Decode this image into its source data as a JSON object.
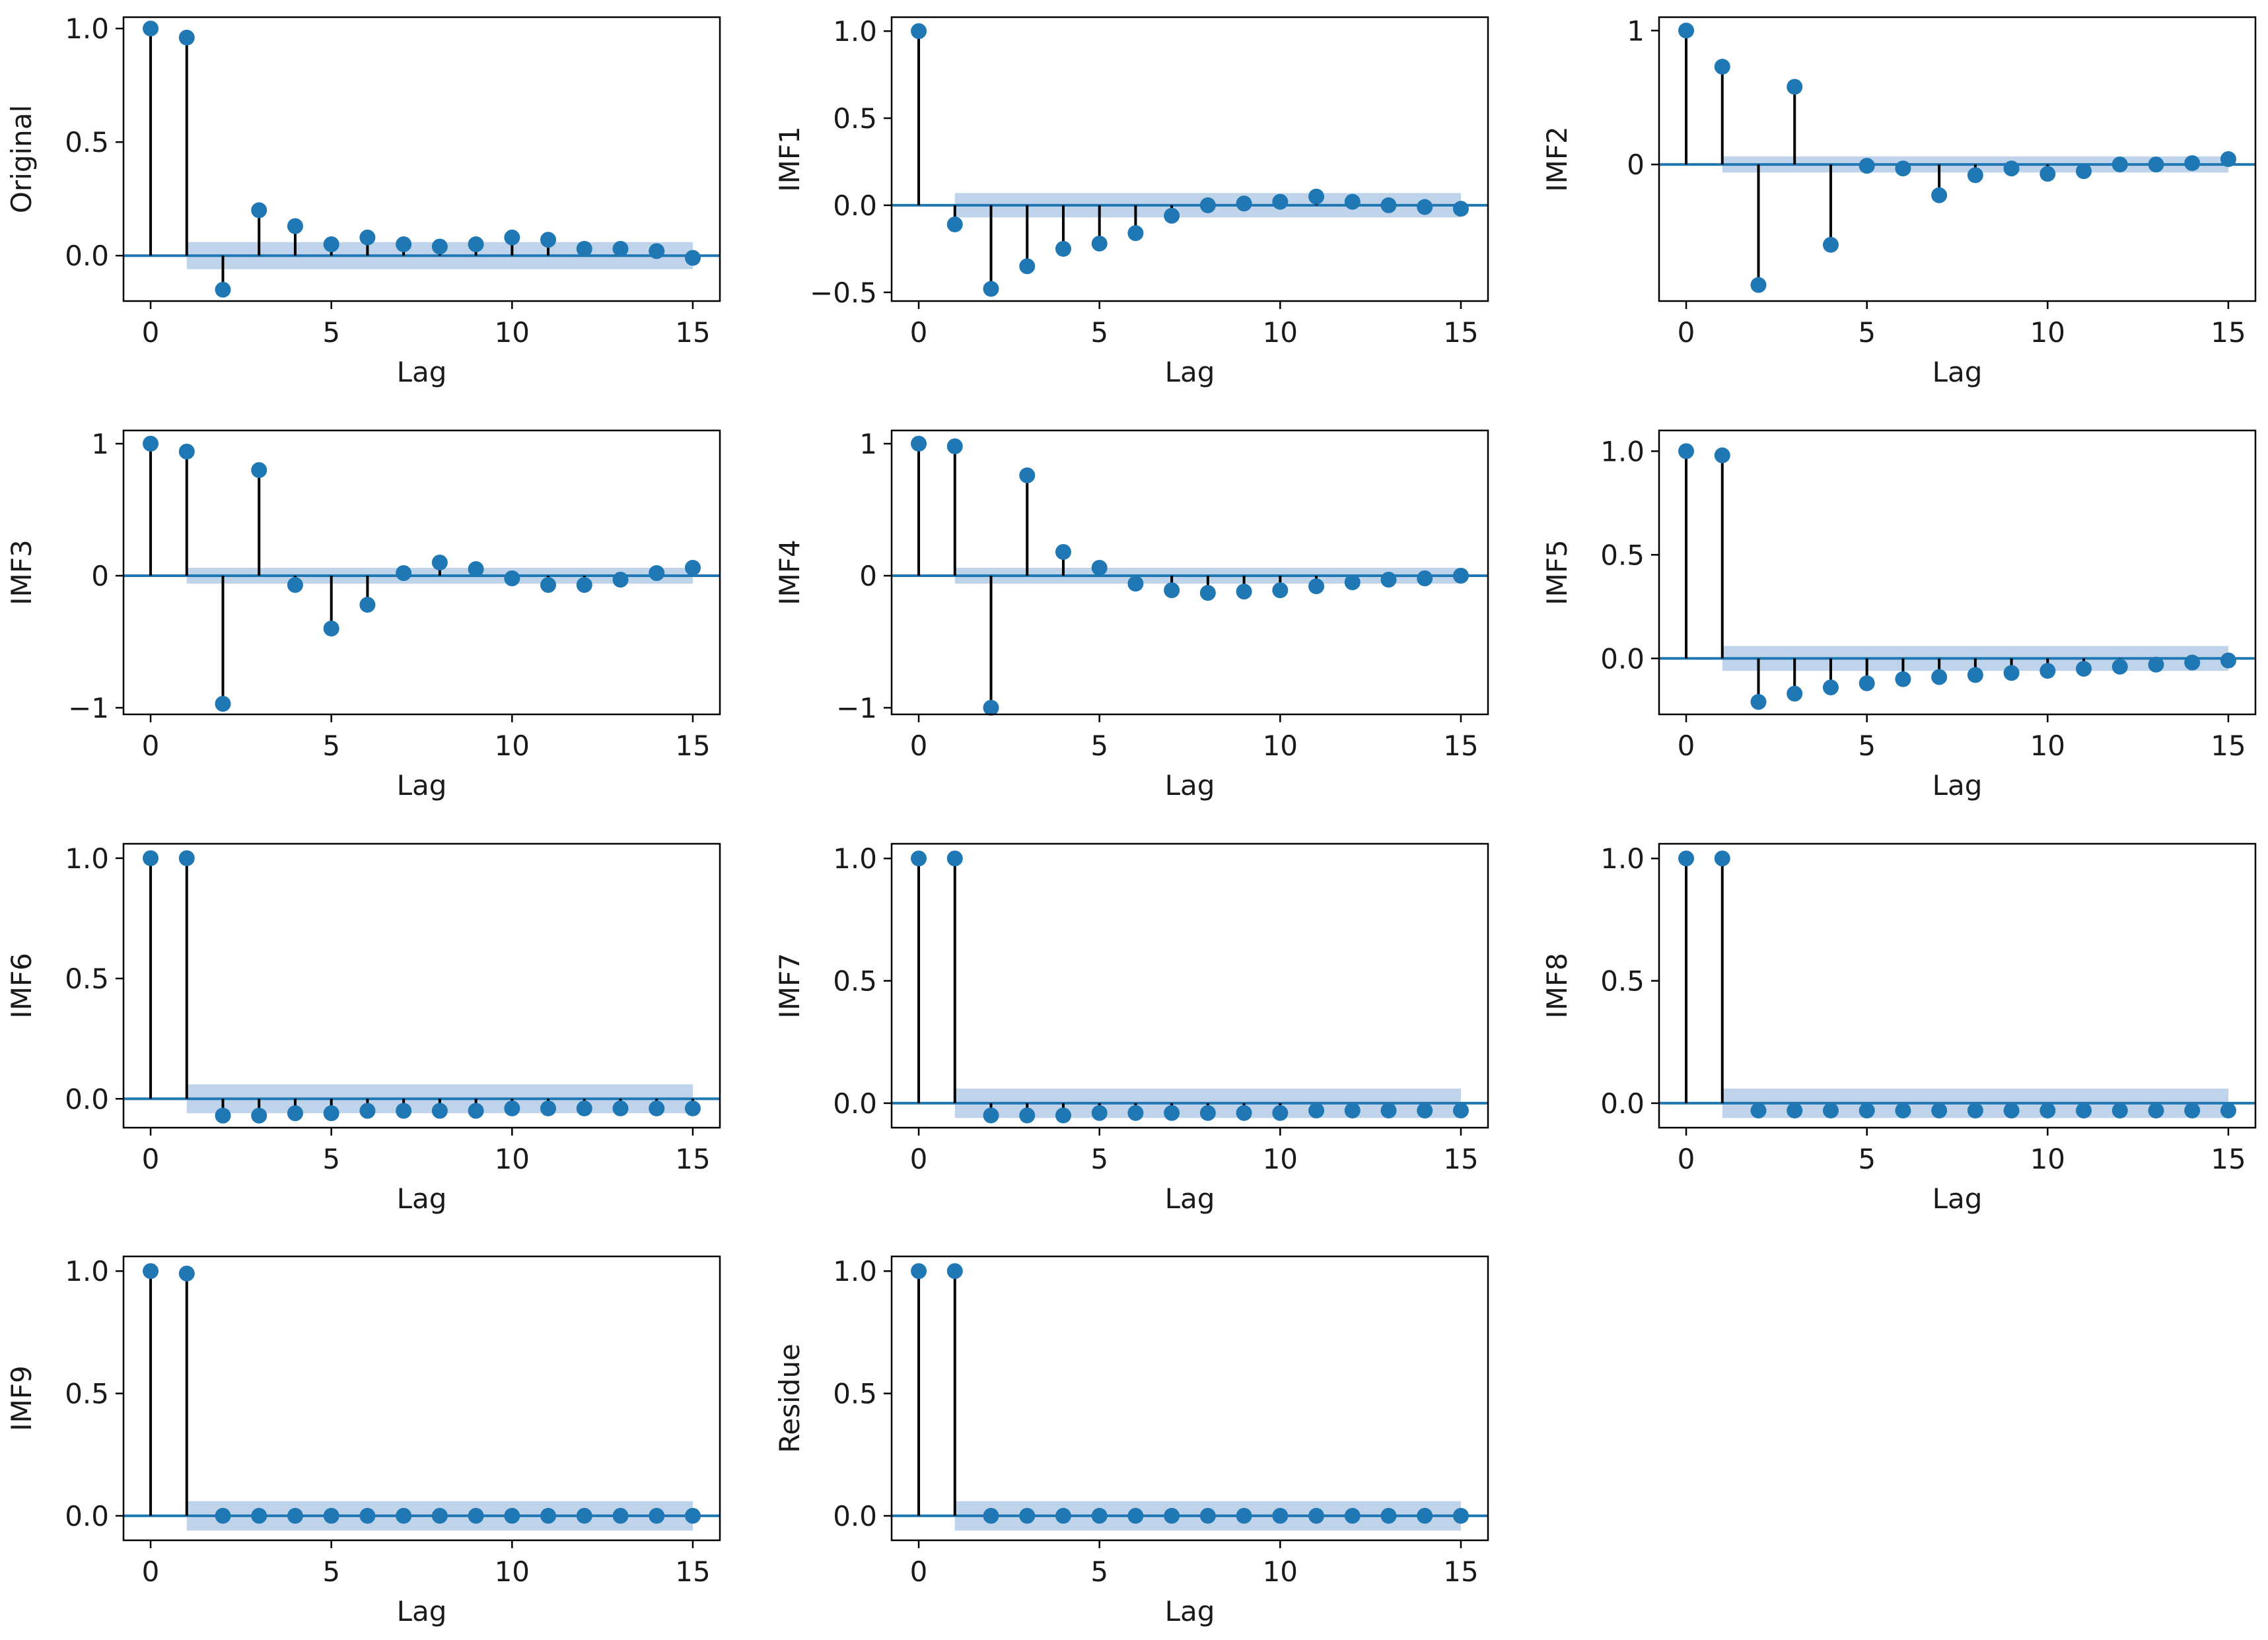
{
  "style": {
    "marker_color": "#1f77b4",
    "stem_color": "#000000",
    "band_color": "#a9c6e3",
    "baseline_color": "#1f77b4",
    "axis_color": "#000000"
  },
  "chart_data": [
    {
      "type": "stem",
      "ylabel": "Original",
      "xlabel": "Lag",
      "xlim": [
        -0.75,
        15.75
      ],
      "ylim": [
        -0.2,
        1.05
      ],
      "xticks": [
        0,
        5,
        10,
        15
      ],
      "xtick_labels": [
        "0",
        "5",
        "10",
        "15"
      ],
      "yticks": [
        0.0,
        0.5,
        1.0
      ],
      "ytick_labels": [
        "0.0",
        "0.5",
        "1.0"
      ],
      "lags": [
        0,
        1,
        2,
        3,
        4,
        5,
        6,
        7,
        8,
        9,
        10,
        11,
        12,
        13,
        14,
        15
      ],
      "values": [
        1.0,
        0.96,
        -0.15,
        0.2,
        0.13,
        0.05,
        0.08,
        0.05,
        0.04,
        0.05,
        0.08,
        0.07,
        0.03,
        0.03,
        0.02,
        -0.01
      ],
      "confint": [
        0.06,
        0.06,
        0.06,
        0.06,
        0.06,
        0.06,
        0.06,
        0.06,
        0.06,
        0.06,
        0.06,
        0.06,
        0.06,
        0.06,
        0.06
      ]
    },
    {
      "type": "stem",
      "ylabel": "IMF1",
      "xlabel": "Lag",
      "xlim": [
        -0.75,
        15.75
      ],
      "ylim": [
        -0.55,
        1.08
      ],
      "xticks": [
        0,
        5,
        10,
        15
      ],
      "xtick_labels": [
        "0",
        "5",
        "10",
        "15"
      ],
      "yticks": [
        -0.5,
        0.0,
        0.5,
        1.0
      ],
      "ytick_labels": [
        "−0.5",
        "0.0",
        "0.5",
        "1.0"
      ],
      "lags": [
        0,
        1,
        2,
        3,
        4,
        5,
        6,
        7,
        8,
        9,
        10,
        11,
        12,
        13,
        14,
        15
      ],
      "values": [
        1.0,
        -0.11,
        -0.48,
        -0.35,
        -0.25,
        -0.22,
        -0.16,
        -0.06,
        0.0,
        0.01,
        0.02,
        0.05,
        0.02,
        0.0,
        -0.01,
        -0.02
      ],
      "confint": [
        0.07,
        0.07,
        0.07,
        0.07,
        0.07,
        0.07,
        0.07,
        0.07,
        0.07,
        0.07,
        0.07,
        0.07,
        0.07,
        0.07,
        0.07
      ]
    },
    {
      "type": "stem",
      "ylabel": "IMF2",
      "xlabel": "Lag",
      "xlim": [
        -0.75,
        15.75
      ],
      "ylim": [
        -1.02,
        1.1
      ],
      "xticks": [
        0,
        5,
        10,
        15
      ],
      "xtick_labels": [
        "0",
        "5",
        "10",
        "15"
      ],
      "yticks": [
        0,
        1
      ],
      "ytick_labels": [
        "0",
        "1"
      ],
      "lags": [
        0,
        1,
        2,
        3,
        4,
        5,
        6,
        7,
        8,
        9,
        10,
        11,
        12,
        13,
        14,
        15
      ],
      "values": [
        1.0,
        0.73,
        -0.9,
        0.58,
        -0.6,
        -0.01,
        -0.03,
        -0.23,
        -0.08,
        -0.03,
        -0.07,
        -0.05,
        0.0,
        0.0,
        0.01,
        0.04
      ],
      "confint": [
        0.06,
        0.06,
        0.06,
        0.06,
        0.06,
        0.06,
        0.06,
        0.06,
        0.06,
        0.06,
        0.06,
        0.06,
        0.06,
        0.06,
        0.06
      ]
    },
    {
      "type": "stem",
      "ylabel": "IMF3",
      "xlabel": "Lag",
      "xlim": [
        -0.75,
        15.75
      ],
      "ylim": [
        -1.05,
        1.1
      ],
      "xticks": [
        0,
        5,
        10,
        15
      ],
      "xtick_labels": [
        "0",
        "5",
        "10",
        "15"
      ],
      "yticks": [
        -1,
        0,
        1
      ],
      "ytick_labels": [
        "−1",
        "0",
        "1"
      ],
      "lags": [
        0,
        1,
        2,
        3,
        4,
        5,
        6,
        7,
        8,
        9,
        10,
        11,
        12,
        13,
        14,
        15
      ],
      "values": [
        1.0,
        0.94,
        -0.97,
        0.8,
        -0.07,
        -0.4,
        -0.22,
        0.02,
        0.1,
        0.05,
        -0.02,
        -0.07,
        -0.07,
        -0.03,
        0.02,
        0.06
      ],
      "confint": [
        0.06,
        0.06,
        0.06,
        0.06,
        0.06,
        0.06,
        0.06,
        0.06,
        0.06,
        0.06,
        0.06,
        0.06,
        0.06,
        0.06,
        0.06
      ]
    },
    {
      "type": "stem",
      "ylabel": "IMF4",
      "xlabel": "Lag",
      "xlim": [
        -0.75,
        15.75
      ],
      "ylim": [
        -1.05,
        1.1
      ],
      "xticks": [
        0,
        5,
        10,
        15
      ],
      "xtick_labels": [
        "0",
        "5",
        "10",
        "15"
      ],
      "yticks": [
        -1,
        0,
        1
      ],
      "ytick_labels": [
        "−1",
        "0",
        "1"
      ],
      "lags": [
        0,
        1,
        2,
        3,
        4,
        5,
        6,
        7,
        8,
        9,
        10,
        11,
        12,
        13,
        14,
        15
      ],
      "values": [
        1.0,
        0.98,
        -1.0,
        0.76,
        0.18,
        0.06,
        -0.06,
        -0.11,
        -0.13,
        -0.12,
        -0.11,
        -0.08,
        -0.05,
        -0.03,
        -0.02,
        0.0
      ],
      "confint": [
        0.06,
        0.06,
        0.06,
        0.06,
        0.06,
        0.06,
        0.06,
        0.06,
        0.06,
        0.06,
        0.06,
        0.06,
        0.06,
        0.06,
        0.06
      ]
    },
    {
      "type": "stem",
      "ylabel": "IMF5",
      "xlabel": "Lag",
      "xlim": [
        -0.75,
        15.75
      ],
      "ylim": [
        -0.27,
        1.1
      ],
      "xticks": [
        0,
        5,
        10,
        15
      ],
      "xtick_labels": [
        "0",
        "5",
        "10",
        "15"
      ],
      "yticks": [
        0.0,
        0.5,
        1.0
      ],
      "ytick_labels": [
        "0.0",
        "0.5",
        "1.0"
      ],
      "lags": [
        0,
        1,
        2,
        3,
        4,
        5,
        6,
        7,
        8,
        9,
        10,
        11,
        12,
        13,
        14,
        15
      ],
      "values": [
        1.0,
        0.98,
        -0.21,
        -0.17,
        -0.14,
        -0.12,
        -0.1,
        -0.09,
        -0.08,
        -0.07,
        -0.06,
        -0.05,
        -0.04,
        -0.03,
        -0.02,
        -0.01
      ],
      "confint": [
        0.06,
        0.06,
        0.06,
        0.06,
        0.06,
        0.06,
        0.06,
        0.06,
        0.06,
        0.06,
        0.06,
        0.06,
        0.06,
        0.06,
        0.06
      ]
    },
    {
      "type": "stem",
      "ylabel": "IMF6",
      "xlabel": "Lag",
      "xlim": [
        -0.75,
        15.75
      ],
      "ylim": [
        -0.12,
        1.06
      ],
      "xticks": [
        0,
        5,
        10,
        15
      ],
      "xtick_labels": [
        "0",
        "5",
        "10",
        "15"
      ],
      "yticks": [
        0.0,
        0.5,
        1.0
      ],
      "ytick_labels": [
        "0.0",
        "0.5",
        "1.0"
      ],
      "lags": [
        0,
        1,
        2,
        3,
        4,
        5,
        6,
        7,
        8,
        9,
        10,
        11,
        12,
        13,
        14,
        15
      ],
      "values": [
        1.0,
        1.0,
        -0.07,
        -0.07,
        -0.06,
        -0.06,
        -0.05,
        -0.05,
        -0.05,
        -0.05,
        -0.04,
        -0.04,
        -0.04,
        -0.04,
        -0.04,
        -0.04
      ],
      "confint": [
        0.06,
        0.06,
        0.06,
        0.06,
        0.06,
        0.06,
        0.06,
        0.06,
        0.06,
        0.06,
        0.06,
        0.06,
        0.06,
        0.06,
        0.06
      ]
    },
    {
      "type": "stem",
      "ylabel": "IMF7",
      "xlabel": "Lag",
      "xlim": [
        -0.75,
        15.75
      ],
      "ylim": [
        -0.1,
        1.06
      ],
      "xticks": [
        0,
        5,
        10,
        15
      ],
      "xtick_labels": [
        "0",
        "5",
        "10",
        "15"
      ],
      "yticks": [
        0.0,
        0.5,
        1.0
      ],
      "ytick_labels": [
        "0.0",
        "0.5",
        "1.0"
      ],
      "lags": [
        0,
        1,
        2,
        3,
        4,
        5,
        6,
        7,
        8,
        9,
        10,
        11,
        12,
        13,
        14,
        15
      ],
      "values": [
        1.0,
        1.0,
        -0.05,
        -0.05,
        -0.05,
        -0.04,
        -0.04,
        -0.04,
        -0.04,
        -0.04,
        -0.04,
        -0.03,
        -0.03,
        -0.03,
        -0.03,
        -0.03
      ],
      "confint": [
        0.06,
        0.06,
        0.06,
        0.06,
        0.06,
        0.06,
        0.06,
        0.06,
        0.06,
        0.06,
        0.06,
        0.06,
        0.06,
        0.06,
        0.06
      ]
    },
    {
      "type": "stem",
      "ylabel": "IMF8",
      "xlabel": "Lag",
      "xlim": [
        -0.75,
        15.75
      ],
      "ylim": [
        -0.1,
        1.06
      ],
      "xticks": [
        0,
        5,
        10,
        15
      ],
      "xtick_labels": [
        "0",
        "5",
        "10",
        "15"
      ],
      "yticks": [
        0.0,
        0.5,
        1.0
      ],
      "ytick_labels": [
        "0.0",
        "0.5",
        "1.0"
      ],
      "lags": [
        0,
        1,
        2,
        3,
        4,
        5,
        6,
        7,
        8,
        9,
        10,
        11,
        12,
        13,
        14,
        15
      ],
      "values": [
        1.0,
        1.0,
        -0.03,
        -0.03,
        -0.03,
        -0.03,
        -0.03,
        -0.03,
        -0.03,
        -0.03,
        -0.03,
        -0.03,
        -0.03,
        -0.03,
        -0.03,
        -0.03
      ],
      "confint": [
        0.06,
        0.06,
        0.06,
        0.06,
        0.06,
        0.06,
        0.06,
        0.06,
        0.06,
        0.06,
        0.06,
        0.06,
        0.06,
        0.06,
        0.06
      ]
    },
    {
      "type": "stem",
      "ylabel": "IMF9",
      "xlabel": "Lag",
      "xlim": [
        -0.75,
        15.75
      ],
      "ylim": [
        -0.1,
        1.06
      ],
      "xticks": [
        0,
        5,
        10,
        15
      ],
      "xtick_labels": [
        "0",
        "5",
        "10",
        "15"
      ],
      "yticks": [
        0.0,
        0.5,
        1.0
      ],
      "ytick_labels": [
        "0.0",
        "0.5",
        "1.0"
      ],
      "lags": [
        0,
        1,
        2,
        3,
        4,
        5,
        6,
        7,
        8,
        9,
        10,
        11,
        12,
        13,
        14,
        15
      ],
      "values": [
        1.0,
        0.99,
        0.0,
        0.0,
        0.0,
        0.0,
        0.0,
        0.0,
        0.0,
        0.0,
        0.0,
        0.0,
        0.0,
        0.0,
        0.0,
        0.0
      ],
      "confint": [
        0.06,
        0.06,
        0.06,
        0.06,
        0.06,
        0.06,
        0.06,
        0.06,
        0.06,
        0.06,
        0.06,
        0.06,
        0.06,
        0.06,
        0.06
      ]
    },
    {
      "type": "stem",
      "ylabel": "Residue",
      "xlabel": "Lag",
      "xlim": [
        -0.75,
        15.75
      ],
      "ylim": [
        -0.1,
        1.06
      ],
      "xticks": [
        0,
        5,
        10,
        15
      ],
      "xtick_labels": [
        "0",
        "5",
        "10",
        "15"
      ],
      "yticks": [
        0.0,
        0.5,
        1.0
      ],
      "ytick_labels": [
        "0.0",
        "0.5",
        "1.0"
      ],
      "lags": [
        0,
        1,
        2,
        3,
        4,
        5,
        6,
        7,
        8,
        9,
        10,
        11,
        12,
        13,
        14,
        15
      ],
      "values": [
        1.0,
        1.0,
        0.0,
        0.0,
        0.0,
        0.0,
        0.0,
        0.0,
        0.0,
        0.0,
        0.0,
        0.0,
        0.0,
        0.0,
        0.0,
        0.0
      ],
      "confint": [
        0.06,
        0.06,
        0.06,
        0.06,
        0.06,
        0.06,
        0.06,
        0.06,
        0.06,
        0.06,
        0.06,
        0.06,
        0.06,
        0.06,
        0.06
      ]
    }
  ]
}
